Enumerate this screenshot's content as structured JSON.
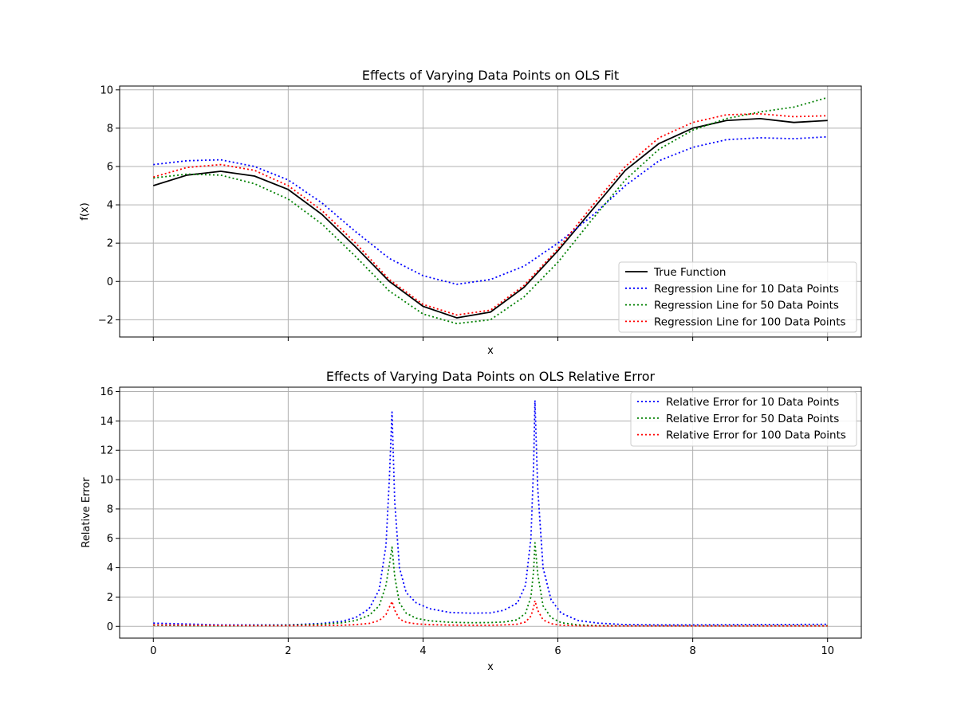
{
  "chart_data": [
    {
      "type": "line",
      "title": "Effects of Varying Data Points on OLS Fit",
      "xlabel": "x",
      "ylabel": "f(x)",
      "xlim": [
        -0.5,
        10.5
      ],
      "ylim": [
        -2.9,
        10.2
      ],
      "xticks": [
        0,
        2,
        4,
        6,
        8,
        10
      ],
      "show_xtick_labels": false,
      "yticks": [
        -2,
        0,
        2,
        4,
        6,
        8,
        10
      ],
      "ytick_labels": [
        "−2",
        "0",
        "2",
        "4",
        "6",
        "8",
        "10"
      ],
      "grid": true,
      "legend_position": "lower-right",
      "x": [
        0,
        0.5,
        1,
        1.5,
        2,
        2.5,
        3,
        3.5,
        4,
        4.5,
        5,
        5.5,
        6,
        6.5,
        7,
        7.5,
        8,
        8.5,
        9,
        9.5,
        10
      ],
      "series": [
        {
          "name": "True Function",
          "color": "#000000",
          "style": "solid",
          "values": [
            5.0,
            5.55,
            5.75,
            5.5,
            4.8,
            3.5,
            1.8,
            0.0,
            -1.3,
            -1.9,
            -1.6,
            -0.3,
            1.6,
            3.7,
            5.8,
            7.2,
            8.0,
            8.4,
            8.5,
            8.3,
            8.4
          ]
        },
        {
          "name": "Regression Line for 10 Data Points",
          "color": "#0000ff",
          "style": "dotted",
          "values": [
            6.1,
            6.3,
            6.35,
            6.0,
            5.3,
            4.1,
            2.6,
            1.2,
            0.3,
            -0.15,
            0.1,
            0.8,
            2.0,
            3.4,
            5.0,
            6.3,
            7.0,
            7.4,
            7.5,
            7.45,
            7.55
          ]
        },
        {
          "name": "Regression Line for 50 Data Points",
          "color": "#008000",
          "style": "dotted",
          "values": [
            5.4,
            5.6,
            5.55,
            5.1,
            4.3,
            3.0,
            1.3,
            -0.5,
            -1.7,
            -2.2,
            -2.0,
            -0.8,
            1.0,
            3.2,
            5.3,
            6.9,
            7.9,
            8.5,
            8.85,
            9.1,
            9.6
          ]
        },
        {
          "name": "Regression Line for 100 Data Points",
          "color": "#ff0000",
          "style": "dotted",
          "values": [
            5.45,
            5.95,
            6.1,
            5.8,
            5.0,
            3.7,
            2.0,
            0.1,
            -1.2,
            -1.75,
            -1.5,
            -0.2,
            1.7,
            3.9,
            6.0,
            7.5,
            8.3,
            8.7,
            8.75,
            8.6,
            8.65
          ]
        }
      ]
    },
    {
      "type": "line",
      "title": "Effects of Varying Data Points on OLS Relative Error",
      "xlabel": "x",
      "ylabel": "Relative Error",
      "xlim": [
        -0.5,
        10.5
      ],
      "ylim": [
        -0.8,
        16.3
      ],
      "xticks": [
        0,
        2,
        4,
        6,
        8,
        10
      ],
      "xtick_labels": [
        "0",
        "2",
        "4",
        "6",
        "8",
        "10"
      ],
      "yticks": [
        0,
        2,
        4,
        6,
        8,
        10,
        12,
        14,
        16
      ],
      "ytick_labels": [
        "0",
        "2",
        "4",
        "6",
        "8",
        "10",
        "12",
        "14",
        "16"
      ],
      "grid": true,
      "legend_position": "top-right",
      "x": [
        0,
        0.5,
        1,
        1.5,
        2,
        2.5,
        2.8,
        3.0,
        3.2,
        3.35,
        3.45,
        3.5,
        3.54,
        3.58,
        3.65,
        3.75,
        3.9,
        4.1,
        4.4,
        4.7,
        5.0,
        5.2,
        5.4,
        5.52,
        5.6,
        5.64,
        5.66,
        5.7,
        5.78,
        5.9,
        6.05,
        6.3,
        6.6,
        7.0,
        7.5,
        8.0,
        9.0,
        10.0
      ],
      "series": [
        {
          "name": "Relative Error for 10 Data Points",
          "color": "#0000ff",
          "style": "dotted",
          "values": [
            0.22,
            0.16,
            0.1,
            0.1,
            0.1,
            0.2,
            0.35,
            0.6,
            1.2,
            2.5,
            5.5,
            10.0,
            14.6,
            8.5,
            4.0,
            2.3,
            1.6,
            1.2,
            0.95,
            0.9,
            0.92,
            1.1,
            1.6,
            2.8,
            6.0,
            11.0,
            15.4,
            9.5,
            4.0,
            1.8,
            0.9,
            0.4,
            0.22,
            0.12,
            0.1,
            0.1,
            0.12,
            0.14
          ]
        },
        {
          "name": "Relative Error for 50 Data Points",
          "color": "#008000",
          "style": "dotted",
          "values": [
            0.08,
            0.05,
            0.04,
            0.06,
            0.08,
            0.15,
            0.25,
            0.4,
            0.75,
            1.4,
            2.8,
            4.2,
            5.4,
            3.4,
            1.6,
            0.9,
            0.55,
            0.38,
            0.28,
            0.25,
            0.26,
            0.3,
            0.45,
            0.9,
            2.0,
            3.8,
            5.7,
            3.6,
            1.4,
            0.6,
            0.25,
            0.1,
            0.05,
            0.04,
            0.04,
            0.04,
            0.04,
            0.04
          ]
        },
        {
          "name": "Relative Error for 100 Data Points",
          "color": "#ff0000",
          "style": "dotted",
          "values": [
            0.1,
            0.08,
            0.06,
            0.05,
            0.05,
            0.06,
            0.08,
            0.12,
            0.2,
            0.4,
            0.8,
            1.3,
            1.7,
            1.1,
            0.5,
            0.28,
            0.17,
            0.12,
            0.09,
            0.08,
            0.08,
            0.1,
            0.15,
            0.3,
            0.7,
            1.3,
            1.75,
            1.1,
            0.45,
            0.18,
            0.08,
            0.04,
            0.03,
            0.03,
            0.03,
            0.03,
            0.03,
            0.03
          ]
        }
      ]
    }
  ]
}
